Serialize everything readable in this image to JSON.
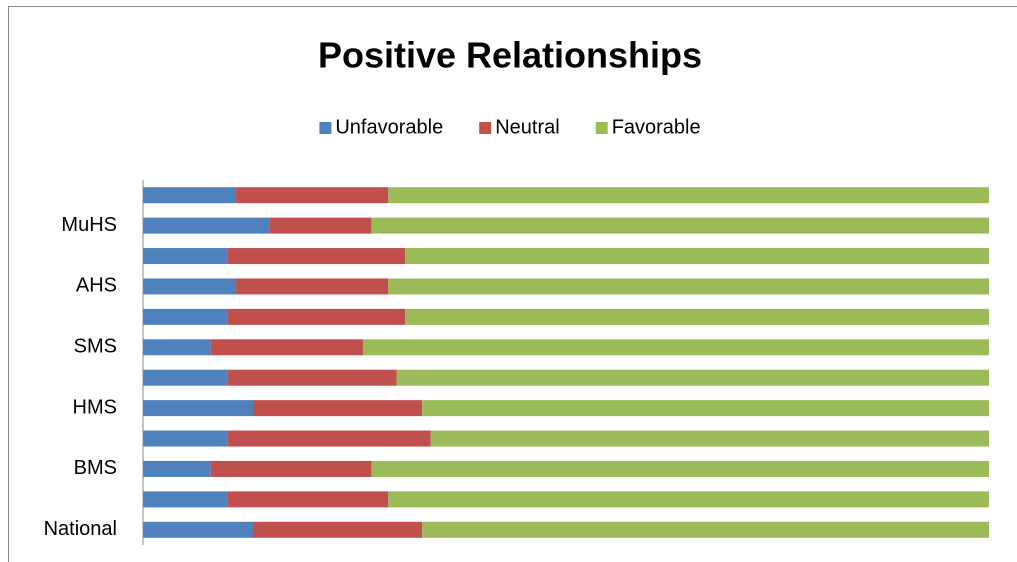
{
  "chart_data": {
    "type": "stacked-barh",
    "title": "Positive Relationships",
    "categories": [
      "National",
      null,
      "BMS",
      null,
      "HMS",
      null,
      "SMS",
      null,
      "AHS",
      null,
      "MuHS",
      null
    ],
    "series": [
      {
        "name": "Unfavorable",
        "color": "#4f81bd",
        "values": [
          13,
          10,
          8,
          10,
          13,
          10,
          8,
          10,
          11,
          10,
          15,
          11
        ]
      },
      {
        "name": "Neutral",
        "color": "#c0504d",
        "values": [
          20,
          19,
          19,
          24,
          20,
          20,
          18,
          21,
          18,
          21,
          12,
          18
        ]
      },
      {
        "name": "Favorable",
        "color": "#9bbb59",
        "values": [
          67,
          71,
          73,
          66,
          67,
          70,
          74,
          69,
          71,
          69,
          73,
          71
        ]
      }
    ],
    "xlim": [
      0,
      100
    ],
    "legend": "top"
  }
}
